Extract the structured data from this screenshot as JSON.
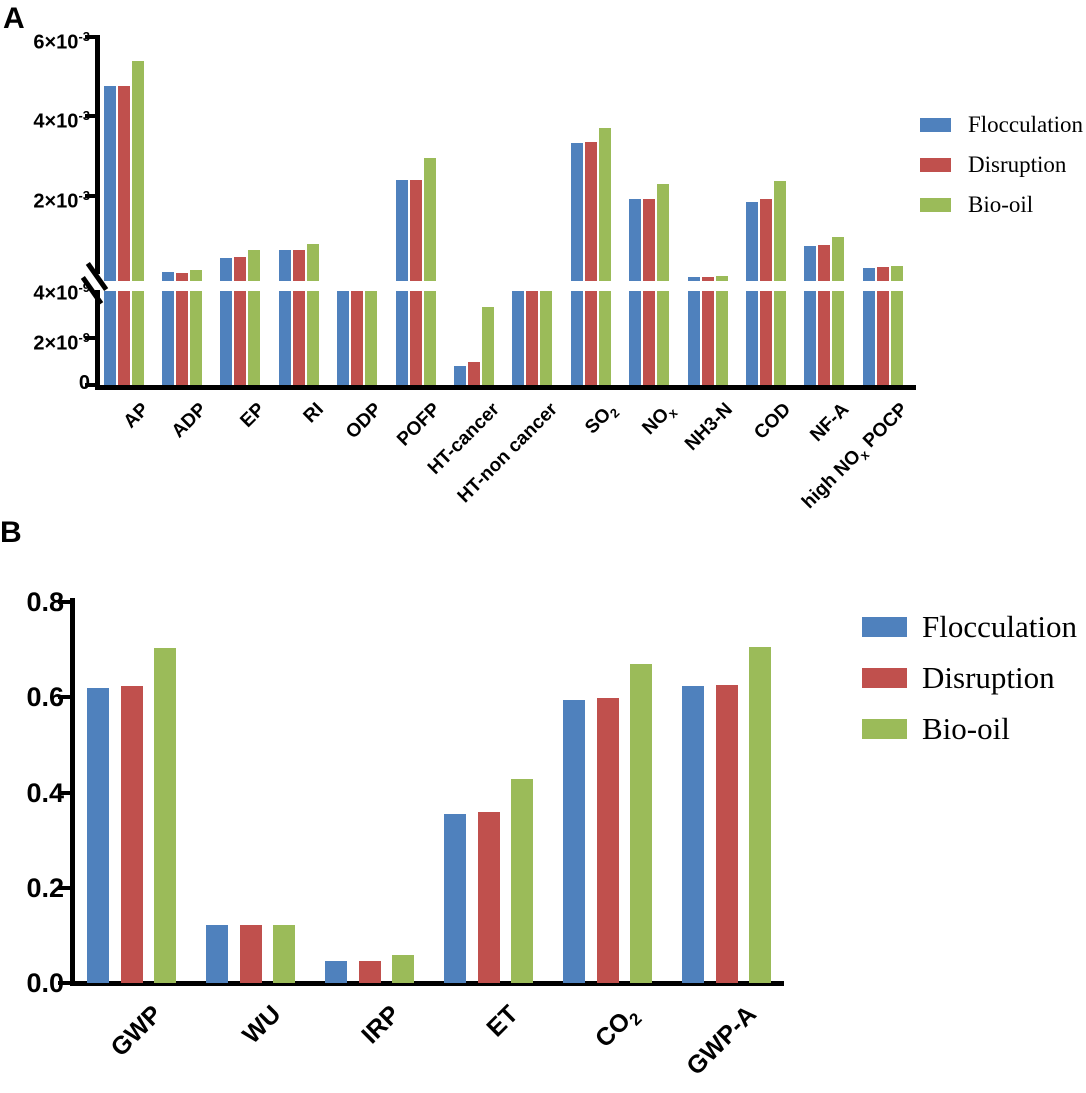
{
  "panels": {
    "a": "A",
    "b": "B"
  },
  "colors": {
    "flocculation": "#4f81bd",
    "disruption": "#c0504d",
    "bio_oil": "#9bbb59",
    "axis": "#000000"
  },
  "chart_data": [
    {
      "type": "bar",
      "panel": "A",
      "broken_y_axis": true,
      "grid": false,
      "legend_position": "right",
      "y_axis_upper": {
        "tick_labels": [
          "6×10^{-3}",
          "4×10^{-3}",
          "2×10^{-3}"
        ],
        "tick_values": [
          0.006,
          0.004,
          0.002
        ],
        "range": [
          0,
          0.006
        ]
      },
      "y_axis_lower": {
        "tick_labels": [
          "4×10^{-9}",
          "2×10^{-9}",
          "0"
        ],
        "tick_values": [
          4e-09,
          2e-09,
          0
        ],
        "range": [
          0,
          4e-09
        ]
      },
      "categories": [
        "AP",
        "ADP",
        "EP",
        "RI",
        "ODP",
        "POFP",
        "HT-cancer",
        "HT-non cancer",
        "SO_{2}",
        "NO_{x}",
        "NH3-N",
        "COD",
        "NF-A",
        "high NO_{x} POCP"
      ],
      "series": [
        {
          "name": "Flocculation",
          "values": [
            0.0049,
            0.00022,
            0.00058,
            0.00078,
            2e-08,
            0.00254,
            8e-10,
            5e-09,
            0.00347,
            0.00206,
            0.0001,
            0.002,
            0.00088,
            0.00033
          ]
        },
        {
          "name": "Disruption",
          "values": [
            0.0049,
            0.0002,
            0.0006,
            0.00078,
            2e-08,
            0.00254,
            1e-09,
            5e-09,
            0.0035,
            0.00206,
            0.0001,
            0.00207,
            0.00091,
            0.00035
          ]
        },
        {
          "name": "Bio-oil",
          "values": [
            0.00553,
            0.00028,
            0.00078,
            0.00093,
            2e-08,
            0.0031,
            3.3e-09,
            5e-09,
            0.00385,
            0.00244,
            0.00013,
            0.00252,
            0.00111,
            0.00038
          ]
        }
      ],
      "legend": [
        "Flocculation",
        "Disruption",
        "Bio-oil"
      ]
    },
    {
      "type": "bar",
      "panel": "B",
      "grid": false,
      "legend_position": "right",
      "ylim": [
        0,
        0.8
      ],
      "ytick_labels": [
        "0.0",
        "0.2",
        "0.4",
        "0.6",
        "0.8"
      ],
      "categories": [
        "GWP",
        "WU",
        "IRP",
        "ET",
        "CO_{2}",
        "GWP-A"
      ],
      "series": [
        {
          "name": "Flocculation",
          "values": [
            0.62,
            0.121,
            0.046,
            0.355,
            0.594,
            0.623
          ]
        },
        {
          "name": "Disruption",
          "values": [
            0.624,
            0.121,
            0.046,
            0.36,
            0.599,
            0.626
          ]
        },
        {
          "name": "Bio-oil",
          "values": [
            0.703,
            0.122,
            0.059,
            0.428,
            0.669,
            0.706
          ]
        }
      ],
      "legend": [
        "Flocculation",
        "Disruption",
        "Bio-oil"
      ]
    }
  ]
}
